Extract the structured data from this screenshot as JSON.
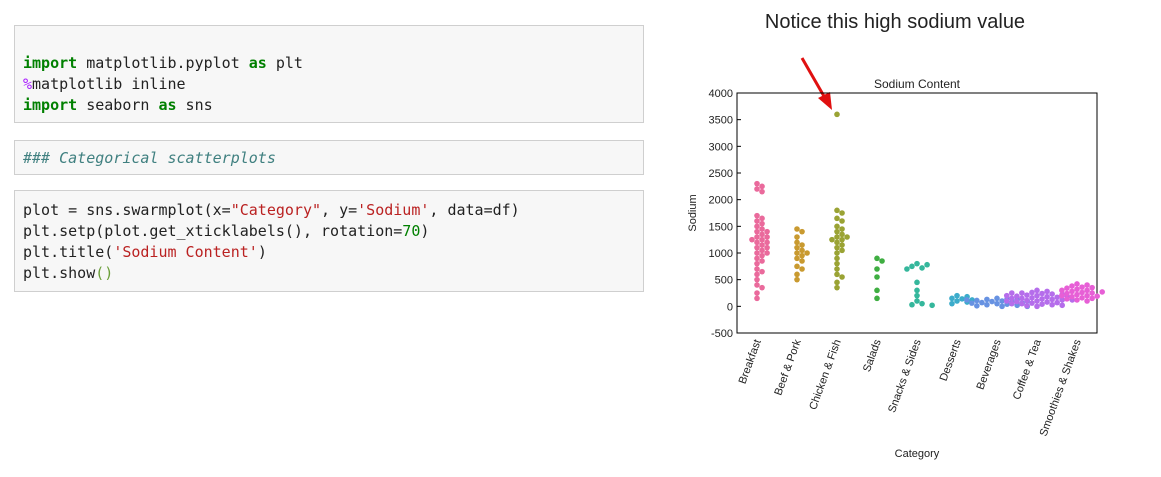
{
  "notebook": {
    "cells": [
      {
        "type": "code",
        "lines": [
          [
            {
              "text": "import",
              "style": "kw"
            },
            {
              "text": " matplotlib.pyplot "
            },
            {
              "text": "as",
              "style": "kw"
            },
            {
              "text": " plt"
            }
          ],
          [
            {
              "text": "%",
              "style": "magic"
            },
            {
              "text": "matplotlib inline"
            }
          ],
          [
            {
              "text": "import",
              "style": "kw"
            },
            {
              "text": " seaborn "
            },
            {
              "text": "as",
              "style": "kw"
            },
            {
              "text": " sns"
            }
          ]
        ]
      },
      {
        "type": "markdown",
        "lines": [
          [
            {
              "text": "### Categorical scatterplots",
              "style": "comment"
            }
          ]
        ]
      },
      {
        "type": "code",
        "lines": [
          [
            {
              "text": "plot = sns.swarmplot(x="
            },
            {
              "text": "\"Category\"",
              "style": "str"
            },
            {
              "text": ", y="
            },
            {
              "text": "'Sodium'",
              "style": "str"
            },
            {
              "text": ", data=df)"
            }
          ],
          [
            {
              "text": "plt.setp(plot.get_xticklabels(), rotation="
            },
            {
              "text": "70",
              "style": "num"
            },
            {
              "text": ")"
            }
          ],
          [
            {
              "text": "plt.title("
            },
            {
              "text": "'Sodium Content'",
              "style": "str"
            },
            {
              "text": ")"
            }
          ],
          [
            {
              "text": "plt.show"
            },
            {
              "text": "()",
              "style": "paren"
            }
          ]
        ]
      }
    ]
  },
  "annotation": "Notice this high sodium value",
  "chart_data": {
    "type": "swarm",
    "title": "Sodium Content",
    "x_label": "Category",
    "y_label": "Sodium",
    "categories": [
      "Breakfast",
      "Beef & Pork",
      "Chicken & Fish",
      "Salads",
      "Snacks & Sides",
      "Desserts",
      "Beverages",
      "Coffee & Tea",
      "Smoothies & Shakes"
    ],
    "colors": [
      "#ea6a9c",
      "#c99a30",
      "#9aa334",
      "#3fae42",
      "#35b79c",
      "#3caccb",
      "#6792e2",
      "#b56deb",
      "#e75fd6"
    ],
    "values": [
      [
        2300,
        2250,
        2200,
        2150,
        1700,
        1650,
        1600,
        1550,
        1500,
        1450,
        1400,
        1400,
        1350,
        1300,
        1300,
        1250,
        1250,
        1200,
        1200,
        1150,
        1100,
        1100,
        1050,
        1000,
        1000,
        950,
        900,
        850,
        800,
        700,
        650,
        600,
        500,
        400,
        350,
        250,
        150
      ],
      [
        1450,
        1400,
        1300,
        1200,
        1150,
        1100,
        1050,
        1000,
        1000,
        950,
        900,
        850,
        750,
        700,
        600,
        500
      ],
      [
        3600,
        1800,
        1750,
        1650,
        1600,
        1500,
        1450,
        1400,
        1350,
        1300,
        1300,
        1250,
        1250,
        1200,
        1150,
        1100,
        1050,
        1000,
        900,
        800,
        700,
        600,
        550,
        450,
        350
      ],
      [
        900,
        850,
        700,
        550,
        300,
        150
      ],
      [
        800,
        780,
        750,
        720,
        700,
        450,
        300,
        200,
        100,
        50,
        30,
        20
      ],
      [
        200,
        180,
        150,
        140,
        120,
        100,
        80,
        50
      ],
      [
        150,
        140,
        130,
        120,
        110,
        100,
        90,
        80,
        70,
        60,
        50,
        40,
        30,
        20,
        10,
        0,
        0,
        60,
        100,
        120
      ],
      [
        300,
        280,
        260,
        250,
        240,
        230,
        220,
        210,
        200,
        190,
        180,
        170,
        160,
        150,
        140,
        130,
        120,
        110,
        100,
        90,
        80,
        70,
        60,
        50,
        40,
        30,
        20,
        10,
        0,
        200,
        150,
        100,
        50,
        250,
        180,
        120
      ],
      [
        420,
        400,
        380,
        360,
        340,
        320,
        300,
        280,
        260,
        240,
        220,
        200,
        180,
        160,
        140,
        120,
        100,
        300,
        250,
        200,
        150,
        350,
        270,
        190
      ]
    ],
    "ylim": [
      -500,
      4000
    ],
    "yticks": [
      -500,
      0,
      500,
      1000,
      1500,
      2000,
      2500,
      3000,
      3500,
      4000
    ]
  }
}
